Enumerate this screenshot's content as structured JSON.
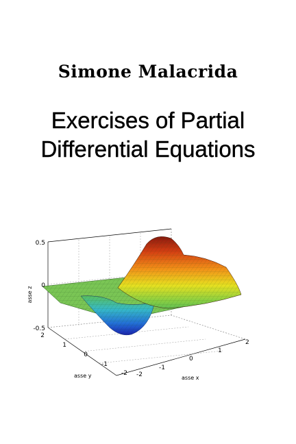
{
  "cover": {
    "author": "Simone Malacrida",
    "title_line1": "Exercises of Partial",
    "title_line2": "Differential Equations"
  },
  "figure": {
    "z_label": "asse z",
    "y_label": "asse y",
    "x_label": "asse x",
    "z_ticks": [
      "0.5",
      "0",
      "-0.5"
    ],
    "y_ticks": [
      "2",
      "1",
      "0",
      "-1",
      "-2"
    ],
    "x_ticks": [
      "-2",
      "-1",
      "0",
      "1",
      "2"
    ],
    "colormap": [
      "#1a2bb8",
      "#2a8fd8",
      "#3cc0b0",
      "#7ed04a",
      "#e8e020",
      "#f08a18",
      "#c22a10"
    ]
  }
}
